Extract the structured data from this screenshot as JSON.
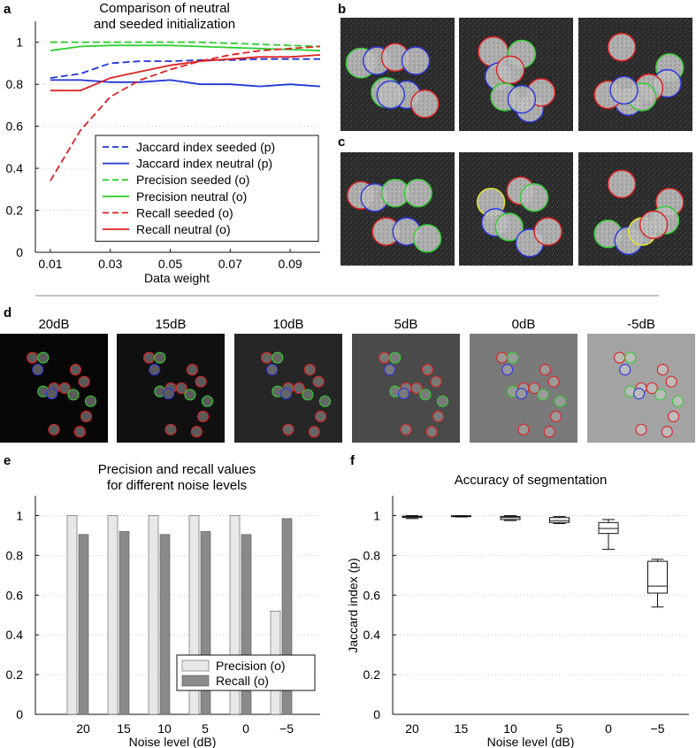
{
  "panels": {
    "a": "a",
    "b": "b",
    "c": "c",
    "d": "d",
    "e": "e",
    "f": "f"
  },
  "chart_data": [
    {
      "id": "a",
      "type": "line",
      "title": "Comparison of neutral\nand seeded initialization",
      "xlabel": "Data weight",
      "ylabel": "",
      "xlim": [
        0.005,
        0.1
      ],
      "ylim": [
        0,
        1.1
      ],
      "xticks": [
        "0.01",
        "0.03",
        "0.05",
        "0.07",
        "0.09"
      ],
      "yticks": [
        "0",
        "0.2",
        "0.4",
        "0.6",
        "0.8",
        "1"
      ],
      "grid": "y-dotted",
      "legend_position": "lower-right",
      "x": [
        0.01,
        0.02,
        0.03,
        0.04,
        0.05,
        0.06,
        0.07,
        0.08,
        0.09,
        0.1
      ],
      "series": [
        {
          "name": "Jaccard index seeded (p)",
          "color": "#1f35d6",
          "dash": "dashed",
          "values": [
            0.83,
            0.85,
            0.9,
            0.91,
            0.91,
            0.915,
            0.915,
            0.92,
            0.92,
            0.92
          ]
        },
        {
          "name": "Jaccard index neutral (p)",
          "color": "#1f35d6",
          "dash": "solid",
          "values": [
            0.82,
            0.82,
            0.81,
            0.81,
            0.82,
            0.8,
            0.8,
            0.79,
            0.8,
            0.79
          ]
        },
        {
          "name": "Precision seeded (o)",
          "color": "#2fcf2f",
          "dash": "dashed",
          "values": [
            1.0,
            1.0,
            1.0,
            1.0,
            1.0,
            1.0,
            0.995,
            0.99,
            0.985,
            0.98
          ]
        },
        {
          "name": "Precision neutral (o)",
          "color": "#2fcf2f",
          "dash": "solid",
          "values": [
            0.96,
            0.98,
            0.985,
            0.985,
            0.985,
            0.98,
            0.975,
            0.97,
            0.965,
            0.96
          ]
        },
        {
          "name": "Recall seeded (o)",
          "color": "#e02020",
          "dash": "dashed",
          "values": [
            0.34,
            0.58,
            0.74,
            0.82,
            0.87,
            0.91,
            0.94,
            0.96,
            0.97,
            0.98
          ]
        },
        {
          "name": "Recall neutral (o)",
          "color": "#e02020",
          "dash": "solid",
          "values": [
            0.77,
            0.77,
            0.83,
            0.86,
            0.89,
            0.91,
            0.92,
            0.93,
            0.93,
            0.94
          ]
        }
      ]
    },
    {
      "id": "e",
      "type": "bar",
      "title": "Precision and recall values\nfor different noise levels",
      "xlabel": "Noise level (dB)",
      "ylabel": "",
      "ylim": [
        0,
        1.1
      ],
      "yticks": [
        "0",
        "0.2",
        "0.4",
        "0.6",
        "0.8",
        "1"
      ],
      "categories": [
        "20",
        "15",
        "10",
        "5",
        "0",
        "−5"
      ],
      "legend_position": "lower-right",
      "grid": "y-dotted",
      "series": [
        {
          "name": "Precision (o)",
          "color": "#e8e8e8",
          "values": [
            1.0,
            1.0,
            1.0,
            1.0,
            1.0,
            0.52
          ]
        },
        {
          "name": "Recall (o)",
          "color": "#8a8a8a",
          "values": [
            0.905,
            0.92,
            0.905,
            0.92,
            0.905,
            0.985
          ]
        }
      ]
    },
    {
      "id": "f",
      "type": "box",
      "title": "Accuracy of segmentation",
      "xlabel": "Noise level (dB)",
      "ylabel": "Jaccard index (p)",
      "ylim": [
        0,
        1.1
      ],
      "yticks": [
        "0",
        "0.2",
        "0.4",
        "0.6",
        "0.8",
        "1"
      ],
      "categories": [
        "20",
        "15",
        "10",
        "5",
        "0",
        "−5"
      ],
      "grid": "y-dotted",
      "boxes": [
        {
          "min": 0.985,
          "q1": 0.99,
          "median": 0.995,
          "q3": 0.997,
          "max": 1.0
        },
        {
          "min": 0.993,
          "q1": 0.995,
          "median": 0.997,
          "q3": 0.999,
          "max": 1.0
        },
        {
          "min": 0.975,
          "q1": 0.98,
          "median": 0.99,
          "q3": 0.995,
          "max": 1.0
        },
        {
          "min": 0.96,
          "q1": 0.965,
          "median": 0.975,
          "q3": 0.99,
          "max": 0.995
        },
        {
          "min": 0.83,
          "q1": 0.91,
          "median": 0.935,
          "q3": 0.965,
          "max": 0.98
        },
        {
          "min": 0.54,
          "q1": 0.61,
          "median": 0.645,
          "q3": 0.77,
          "max": 0.78
        }
      ]
    }
  ],
  "noise_labels": [
    "20dB",
    "15dB",
    "10dB",
    "5dB",
    "0dB",
    "-5dB"
  ],
  "colors": {
    "blue": "#2a36e0",
    "green": "#2fcf2f",
    "red": "#e02020",
    "yellow": "#e6e62a"
  }
}
